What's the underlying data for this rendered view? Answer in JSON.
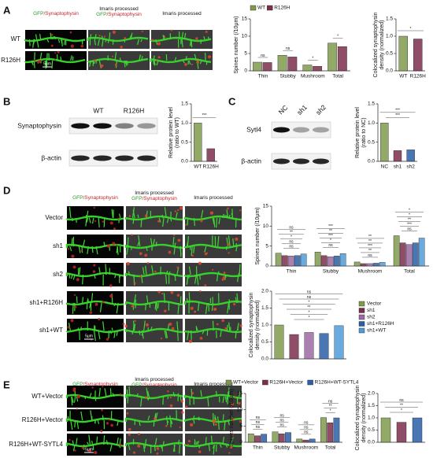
{
  "panels": [
    "A",
    "B",
    "C",
    "D",
    "E"
  ],
  "images": {
    "A": {
      "headers": [
        {
          "lines": [
            [
              "GFP",
              "/Synaptophysin"
            ]
          ]
        },
        {
          "lines": [
            [
              "Imaris processed"
            ],
            [
              "GFP",
              "/Synaptophysin"
            ]
          ]
        },
        {
          "lines": [
            [
              "Imaris processed"
            ]
          ]
        }
      ],
      "rows": [
        "WT",
        "R126H"
      ],
      "scale": "5μm"
    },
    "D": {
      "headers": [
        {
          "lines": [
            [
              "GFP",
              "/Synaptophysin"
            ]
          ]
        },
        {
          "lines": [
            [
              "Imaris processed"
            ],
            [
              "GFP",
              "/Synaptophysin"
            ]
          ]
        },
        {
          "lines": [
            [
              "Imaris processed"
            ]
          ]
        }
      ],
      "rows": [
        "Vector",
        "sh1",
        "sh2",
        "sh1+R126H",
        "sh1+WT"
      ],
      "scale": "5μm"
    },
    "E": {
      "headers": [
        {
          "lines": [
            [
              "GFP",
              "/Synaptophysin"
            ]
          ]
        },
        {
          "lines": [
            [
              "Imaris processed"
            ],
            [
              "GFP",
              "/Synaptophysin"
            ]
          ]
        },
        {
          "lines": [
            [
              "Imaris processed"
            ]
          ]
        }
      ],
      "rows": [
        "WT+Vector",
        "R126H+Vector",
        "R126H+WT-SYTL4"
      ],
      "scale": "5μm"
    }
  },
  "blots": {
    "B": {
      "lanes": [
        "WT",
        "R126H"
      ],
      "rows": [
        "Synaptophysin",
        "β-actin"
      ]
    },
    "C": {
      "lanes": [
        "NC",
        "sh1",
        "sh2"
      ],
      "rows": [
        "Sytl4",
        "β-actin"
      ]
    }
  },
  "chart_data": [
    {
      "type": "bar",
      "ylabel": [
        "Spines number (/10μm)"
      ],
      "categories": [
        "Thin",
        "Stubby",
        "Mushroom",
        "Total"
      ],
      "series": [
        {
          "name": "WT",
          "color": "#7f9a4c",
          "values": [
            2.5,
            4.5,
            1.7,
            8.0
          ]
        },
        {
          "name": "R126H",
          "color": "#7b2e4e",
          "values": [
            2.4,
            4.0,
            1.3,
            7.0
          ]
        }
      ],
      "ylim": [
        0,
        15
      ],
      "yticks": [
        0,
        5,
        10,
        15
      ],
      "legend": "top",
      "significance": [
        [
          "ns"
        ],
        [
          "ns"
        ],
        [
          "*"
        ],
        [
          "*"
        ]
      ]
    },
    {
      "type": "bar",
      "ylabel": [
        "Colocalized synaptophysin",
        "density (normalized)"
      ],
      "categories": [
        "WT",
        "R126H"
      ],
      "values": [
        1.0,
        0.92
      ],
      "colors": [
        "#7f9a4c",
        "#7b2e4e"
      ],
      "ylim": [
        0,
        1.5
      ],
      "yticks": [
        {
          "value": 0,
          "label": "0.0"
        },
        0.5,
        {
          "value": 1,
          "label": "1.0"
        },
        1.5
      ],
      "significance": [
        "*"
      ]
    },
    {
      "type": "bar",
      "ylabel": [
        "Relative protein level",
        "(ratio to WT)"
      ],
      "categories": [
        "WT",
        "R126H"
      ],
      "values": [
        1.0,
        0.33
      ],
      "colors": [
        "#7f9a4c",
        "#7b2e4e"
      ],
      "ylim": [
        0,
        1.5
      ],
      "yticks": [
        {
          "value": 0,
          "label": "0.0"
        },
        0.5,
        {
          "value": 1,
          "label": "1.0"
        },
        1.5
      ],
      "significance": [
        "***"
      ]
    },
    {
      "type": "bar",
      "ylabel": [
        "Relative protein level",
        "(ratio to NC)"
      ],
      "categories": [
        "NC",
        "sh1",
        "sh2"
      ],
      "values": [
        1.0,
        0.28,
        0.3
      ],
      "colors": [
        "#7f9a4c",
        "#7b2e4e",
        "#2b5ea7"
      ],
      "ylim": [
        0,
        1.5
      ],
      "yticks": [
        {
          "value": 0,
          "label": "0.0"
        },
        0.5,
        {
          "value": 1,
          "label": "1.0"
        },
        1.5
      ],
      "significance": [
        "***",
        "***"
      ]
    },
    {
      "type": "bar",
      "ylabel": [
        "Spines number (/10μm)"
      ],
      "categories": [
        "Thin",
        "Stubby",
        "Mushroom",
        "Total"
      ],
      "series": [
        {
          "name": "Vector",
          "color": "#7f9a4c",
          "values": [
            3.2,
            3.5,
            1.0,
            7.6
          ]
        },
        {
          "name": "sh1",
          "color": "#7b2e4e",
          "values": [
            2.6,
            2.6,
            0.6,
            5.8
          ]
        },
        {
          "name": "sh2",
          "color": "#9c6aa3",
          "values": [
            2.5,
            2.3,
            0.6,
            5.4
          ]
        },
        {
          "name": "sh1+R126H",
          "color": "#2b5ea7",
          "values": [
            2.6,
            2.5,
            0.7,
            5.8
          ]
        },
        {
          "name": "sh1+WT",
          "color": "#4f9bd9",
          "values": [
            3.0,
            3.1,
            0.9,
            7.0
          ]
        }
      ],
      "ylim": [
        0,
        15
      ],
      "yticks": [
        0,
        5,
        10,
        15
      ],
      "legend": "bottom right",
      "significance": [
        [
          "ns",
          "ns",
          "*",
          "**",
          "ns"
        ],
        [
          "ns",
          "*",
          "***",
          "**",
          "***"
        ],
        [
          "ns",
          "**",
          "***",
          "**",
          "**"
        ],
        [
          "ns",
          "***",
          "**",
          "*",
          "*"
        ]
      ]
    },
    {
      "type": "bar",
      "ylabel": [
        "Colocalized synaptophysin",
        "density (normalized)"
      ],
      "categories": [
        null,
        null,
        null,
        null,
        null
      ],
      "values": [
        1.0,
        0.72,
        0.78,
        0.75,
        0.98
      ],
      "colors": [
        "#7f9a4c",
        "#7b2e4e",
        "#9c6aa3",
        "#2b5ea7",
        "#4f9bd9"
      ],
      "ylim": [
        0,
        2
      ],
      "yticks": [
        {
          "value": 0,
          "label": "0.0"
        },
        0.5,
        {
          "value": 1,
          "label": "1.0"
        },
        1.5,
        {
          "value": 2,
          "label": "2.0"
        }
      ],
      "significance": [
        "*",
        "*",
        "**",
        "*",
        "ns",
        "ns"
      ]
    },
    {
      "type": "bar",
      "ylabel": [
        "Spines number (/10μm)"
      ],
      "categories": [
        "Thin",
        "Stubby",
        "Mushroom",
        "Total"
      ],
      "series": [
        {
          "name": "WT+Vector",
          "color": "#7f9a4c",
          "values": [
            2.6,
            3.2,
            1.0,
            7.6
          ]
        },
        {
          "name": "R126H+Vector",
          "color": "#7b2e4e",
          "values": [
            2.0,
            2.6,
            0.7,
            6.0
          ]
        },
        {
          "name": "R126H+WT-SYTL4",
          "color": "#2b5ea7",
          "values": [
            2.5,
            3.0,
            1.0,
            7.5
          ]
        }
      ],
      "ylim": [
        0,
        15
      ],
      "yticks": [
        0,
        5,
        10,
        15
      ],
      "legend": "top",
      "significance": [
        [
          "ns",
          "ns",
          "ns"
        ],
        [
          "ns",
          "ns",
          "ns"
        ],
        [
          "ns",
          "ns",
          "ns"
        ],
        [
          "*",
          "**",
          "ns"
        ]
      ]
    },
    {
      "type": "bar",
      "ylabel": [
        "Colocalized synaptophysin",
        "density (normalized)"
      ],
      "categories": [
        null,
        null,
        null
      ],
      "values": [
        1.0,
        0.82,
        1.0
      ],
      "colors": [
        "#7f9a4c",
        "#7b2e4e",
        "#2b5ea7"
      ],
      "ylim": [
        0,
        2
      ],
      "yticks": [
        {
          "value": 0,
          "label": "0.0"
        },
        0.5,
        {
          "value": 1,
          "label": "1.0"
        },
        1.5,
        {
          "value": 2,
          "label": "2.0"
        }
      ],
      "significance": [
        "*",
        "**",
        "ns"
      ]
    }
  ]
}
